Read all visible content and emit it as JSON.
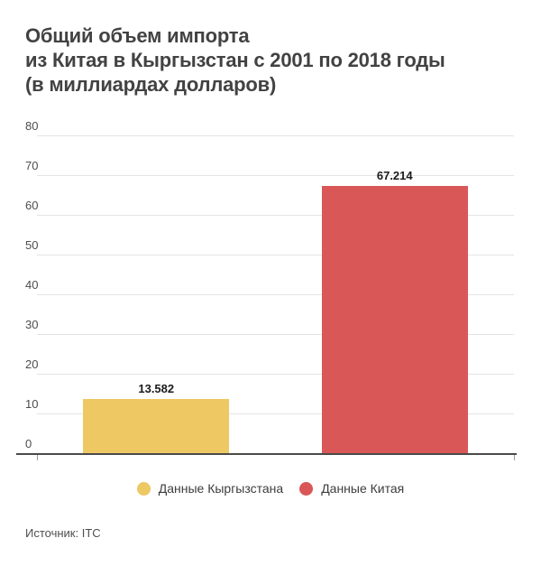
{
  "title": {
    "lines": [
      "Общий объем импорта",
      "из Китая в Кыргызстан с 2001 по 2018 годы",
      "(в миллиардах долларов)"
    ]
  },
  "chart_data": {
    "type": "bar",
    "title": "Общий объем импорта из Китая в Кыргызстан с 2001 по 2018 годы (в миллиардах долларов)",
    "categories": [
      "Данные Кыргызстана",
      "Данные Китая"
    ],
    "values": [
      13.582,
      67.214
    ],
    "bar_value_labels": [
      "13.582",
      "67.214"
    ],
    "bar_colors": [
      "#edc863",
      "#d95757"
    ],
    "xlabel": "",
    "ylabel": "",
    "ylim": [
      0,
      80
    ],
    "yticks": [
      0,
      10,
      20,
      30,
      40,
      50,
      60,
      70,
      80
    ],
    "grid": true,
    "legend_position": "bottom",
    "legend": [
      {
        "label": "Данные Кыргызстана",
        "color": "#edc863"
      },
      {
        "label": "Данные Китая",
        "color": "#d95757"
      }
    ]
  },
  "source": {
    "text": "Источник: ITC"
  },
  "colors": {
    "kyrgyzstan_series": "#edc863",
    "china_series": "#d95757",
    "gridline": "#e4e4e4",
    "axis": "#4a4a4a"
  }
}
